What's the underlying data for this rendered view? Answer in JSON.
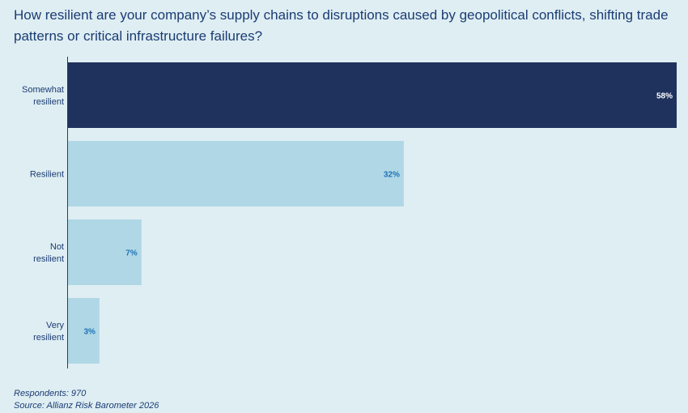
{
  "title": "How resilient are your company’s supply chains to disruptions caused by geopolitical conflicts, shifting trade patterns or critical infrastructure failures?",
  "footer": {
    "respondents": "Respondents: 970",
    "source": "Source: Allianz Risk Barometer 2026"
  },
  "colors": {
    "highlight": "#1f325e",
    "bar": "#b0d7e5",
    "value_on_light": "#1e73b8",
    "value_on_dark": "#ffffff",
    "axis": "#3a3a3a"
  },
  "chart_data": {
    "type": "bar",
    "orientation": "horizontal",
    "categories": [
      [
        "Somewhat",
        "resilient"
      ],
      [
        "Resilient"
      ],
      [
        "Not",
        "resilient"
      ],
      [
        "Very",
        "resilient"
      ]
    ],
    "values": [
      58,
      32,
      7,
      3
    ],
    "value_labels": [
      "58%",
      "32%",
      "7%",
      "3%"
    ],
    "highlight_index": 0,
    "xlim": [
      0,
      58
    ],
    "unit": "%"
  }
}
